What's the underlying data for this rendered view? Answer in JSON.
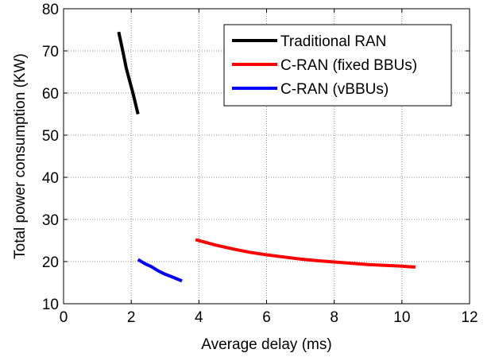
{
  "chart_data": {
    "type": "line",
    "title": "",
    "xlabel": "Average delay (ms)",
    "ylabel": "Total power consumption (KW)",
    "xlim": [
      0,
      12
    ],
    "ylim": [
      10,
      80
    ],
    "xticks": [
      0,
      2,
      4,
      6,
      8,
      10,
      12
    ],
    "yticks": [
      10,
      20,
      30,
      40,
      50,
      60,
      70,
      80
    ],
    "grid": true,
    "legend_position": "top-right",
    "series": [
      {
        "name": "Traditional RAN",
        "color": "#000000",
        "x": [
          1.63,
          1.75,
          1.85,
          1.95,
          2.05,
          2.2
        ],
        "y": [
          74.5,
          70,
          66,
          63,
          60,
          55
        ]
      },
      {
        "name": "C-RAN (fixed BBUs)",
        "color": "#ff0000",
        "x": [
          3.9,
          4.5,
          5.0,
          5.5,
          6.0,
          6.5,
          7.0,
          7.5,
          8.0,
          8.5,
          9.0,
          9.5,
          10.0,
          10.4
        ],
        "y": [
          25.2,
          23.9,
          23.0,
          22.2,
          21.6,
          21.1,
          20.6,
          20.2,
          19.9,
          19.6,
          19.3,
          19.1,
          18.9,
          18.7
        ]
      },
      {
        "name": "C-RAN (vBBUs)",
        "color": "#0000ff",
        "x": [
          2.2,
          2.4,
          2.6,
          2.8,
          3.0,
          3.2,
          3.5
        ],
        "y": [
          20.5,
          19.5,
          18.8,
          17.8,
          17.0,
          16.4,
          15.4
        ]
      }
    ]
  }
}
